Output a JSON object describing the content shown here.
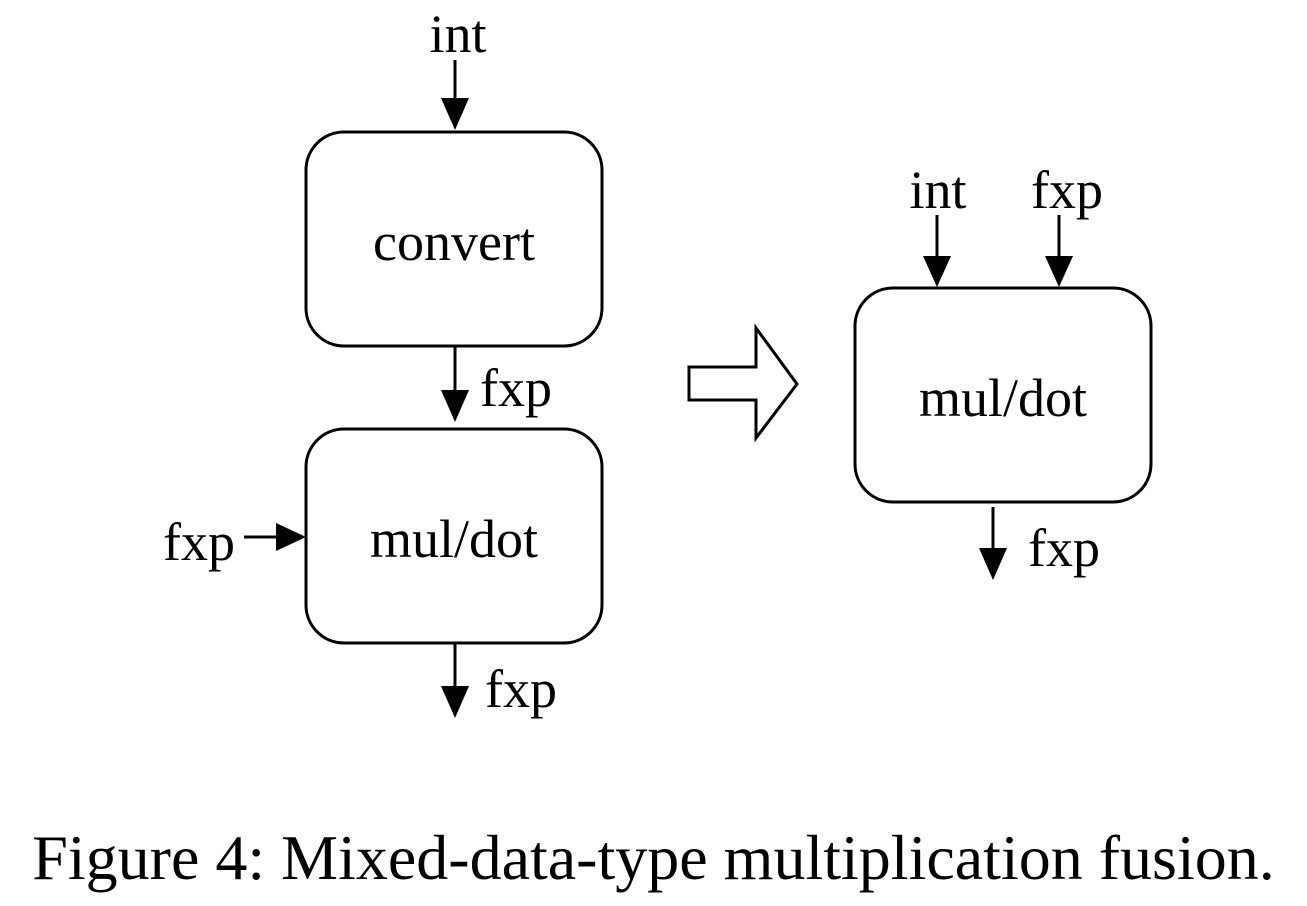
{
  "left": {
    "top_input": "int",
    "convert_box": "convert",
    "mid_output": "fxp",
    "side_input": "fxp",
    "mul_box": "mul/dot",
    "bottom_output": "fxp"
  },
  "right": {
    "input_int": "int",
    "input_fxp": "fxp",
    "mul_box": "mul/dot",
    "output": "fxp"
  },
  "caption": "Figure 4: Mixed-data-type multiplication fusion."
}
